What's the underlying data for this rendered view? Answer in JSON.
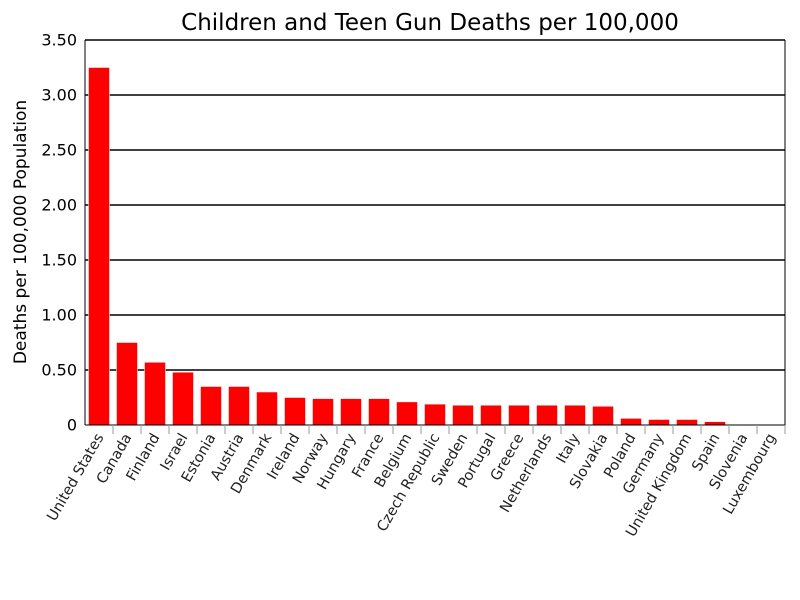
{
  "chart_data": {
    "type": "bar",
    "title": "Children and Teen Gun Deaths per 100,000",
    "xlabel": "",
    "ylabel": "Deaths per 100,000 Population",
    "ylim": [
      0,
      3.5
    ],
    "yticks": [
      0,
      0.5,
      1.0,
      1.5,
      2.0,
      2.5,
      3.0,
      3.5
    ],
    "ytick_labels": [
      "0",
      "0.50",
      "1.00",
      "1.50",
      "2.00",
      "2.50",
      "3.00",
      "3.50"
    ],
    "grid": true,
    "bar_color": "#ff0000",
    "categories": [
      "United States",
      "Canada",
      "Finland",
      "Israel",
      "Estonia",
      "Austria",
      "Denmark",
      "Ireland",
      "Norway",
      "Hungary",
      "France",
      "Belgium",
      "Czech Republic",
      "Sweden",
      "Portugal",
      "Greece",
      "Netherlands",
      "Italy",
      "Slovakia",
      "Poland",
      "Germany",
      "United Kingdom",
      "Spain",
      "Slovenia",
      "Luxembourg"
    ],
    "values": [
      3.25,
      0.75,
      0.57,
      0.48,
      0.35,
      0.35,
      0.3,
      0.25,
      0.24,
      0.24,
      0.24,
      0.21,
      0.19,
      0.18,
      0.18,
      0.18,
      0.18,
      0.18,
      0.17,
      0.06,
      0.05,
      0.05,
      0.03,
      0.0,
      0.0
    ]
  }
}
